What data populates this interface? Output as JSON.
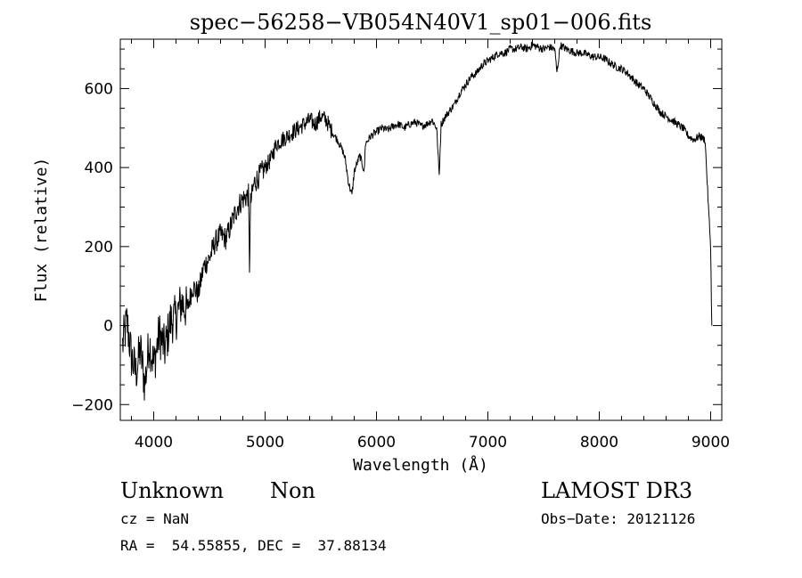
{
  "chart_data": {
    "type": "line",
    "title": "spec−56258−VB054N40V1_sp01−006.fits",
    "xlabel": "Wavelength (Å)",
    "ylabel": "Flux (relative)",
    "xlim": [
      3700,
      9100
    ],
    "ylim": [
      -240,
      725
    ],
    "x_ticks": [
      4000,
      5000,
      6000,
      7000,
      8000,
      9000
    ],
    "y_ticks": [
      -200,
      0,
      200,
      400,
      600
    ],
    "grid": false,
    "line_color": "#000000",
    "series": [
      {
        "x": [
          3720,
          3760,
          3800,
          3840,
          3880,
          3920,
          3960,
          4000,
          4050,
          4100,
          4150,
          4200,
          4250,
          4300,
          4350,
          4400,
          4450,
          4500,
          4550,
          4600,
          4650,
          4700,
          4750,
          4800,
          4850,
          4860,
          4870,
          4900,
          4950,
          5000,
          5050,
          5100,
          5150,
          5200,
          5250,
          5300,
          5350,
          5400,
          5450,
          5500,
          5550,
          5600,
          5650,
          5700,
          5720,
          5750,
          5780,
          5800,
          5850,
          5890,
          5900,
          5950,
          6000,
          6050,
          6100,
          6150,
          6200,
          6250,
          6300,
          6350,
          6400,
          6450,
          6500,
          6540,
          6563,
          6580,
          6620,
          6700,
          6750,
          6800,
          6850,
          6900,
          6950,
          7000,
          7050,
          7100,
          7150,
          7200,
          7250,
          7300,
          7350,
          7400,
          7450,
          7500,
          7550,
          7600,
          7620,
          7650,
          7700,
          7750,
          7800,
          7850,
          7900,
          7950,
          8000,
          8050,
          8100,
          8150,
          8200,
          8250,
          8300,
          8350,
          8400,
          8450,
          8500,
          8550,
          8600,
          8650,
          8700,
          8750,
          8800,
          8850,
          8900,
          8950,
          8980,
          9000,
          9010
        ],
        "y": [
          -50,
          10,
          -80,
          -120,
          -60,
          -150,
          -40,
          -100,
          -20,
          -60,
          10,
          20,
          60,
          40,
          100,
          80,
          150,
          170,
          210,
          230,
          220,
          260,
          300,
          320,
          330,
          150,
          310,
          360,
          380,
          400,
          420,
          460,
          470,
          480,
          490,
          500,
          510,
          520,
          510,
          530,
          520,
          490,
          470,
          440,
          420,
          360,
          330,
          390,
          430,
          390,
          460,
          480,
          490,
          500,
          495,
          505,
          510,
          500,
          510,
          515,
          505,
          510,
          520,
          500,
          380,
          510,
          530,
          560,
          590,
          610,
          630,
          640,
          660,
          670,
          680,
          690,
          690,
          700,
          700,
          705,
          700,
          710,
          705,
          700,
          705,
          700,
          640,
          710,
          700,
          695,
          690,
          690,
          685,
          680,
          680,
          675,
          665,
          655,
          650,
          640,
          625,
          610,
          600,
          580,
          560,
          540,
          530,
          520,
          510,
          500,
          480,
          470,
          480,
          470,
          300,
          200,
          0
        ]
      }
    ]
  },
  "info": {
    "object_class": "Unknown",
    "subclass": "Non",
    "survey": "LAMOST DR3",
    "cz": "cz = NaN",
    "obs_date": "Obs−Date: 20121126",
    "coords": "RA =  54.55855, DEC =  37.88134"
  }
}
